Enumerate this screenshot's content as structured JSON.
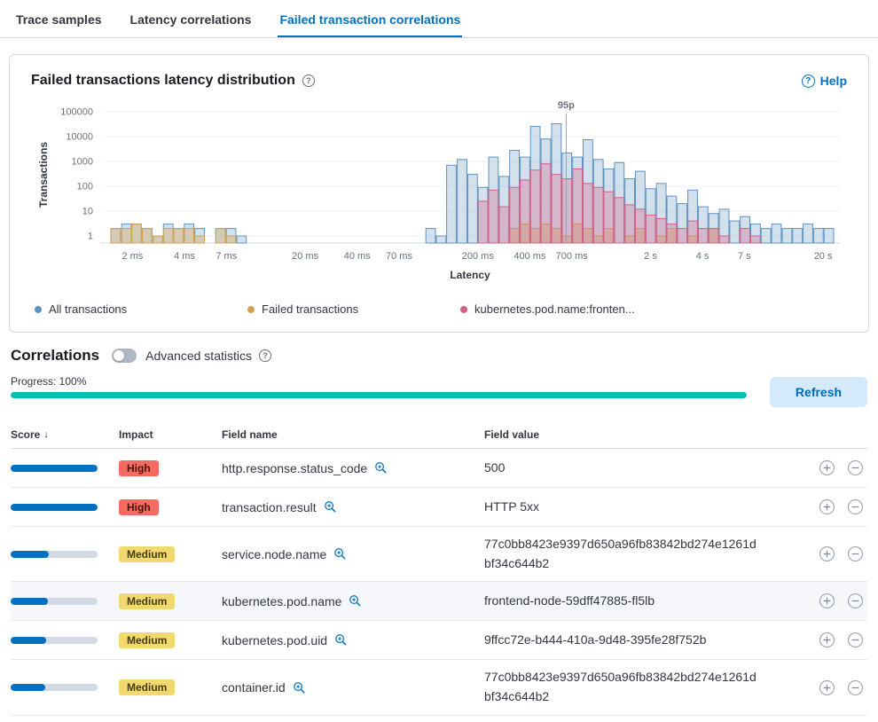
{
  "tabs": [
    {
      "label": "Trace samples",
      "active": false
    },
    {
      "label": "Latency correlations",
      "active": false
    },
    {
      "label": "Failed transaction correlations",
      "active": true
    }
  ],
  "panel": {
    "title": "Failed transactions latency distribution",
    "help_label": "Help"
  },
  "icons": {
    "question": "?",
    "help": "?",
    "sort_desc": "↓"
  },
  "chart_data": {
    "type": "bar",
    "title": "Failed transactions latency distribution",
    "xlabel": "Latency",
    "ylabel": "Transactions",
    "x_scale": "log",
    "y_scale": "log",
    "y_ticks": [
      1,
      10,
      100,
      1000,
      10000,
      100000
    ],
    "x_ticks": [
      {
        "ms": 2,
        "label": "2 ms"
      },
      {
        "ms": 4,
        "label": "4 ms"
      },
      {
        "ms": 7,
        "label": "7 ms"
      },
      {
        "ms": 20,
        "label": "20 ms"
      },
      {
        "ms": 40,
        "label": "40 ms"
      },
      {
        "ms": 70,
        "label": "70 ms"
      },
      {
        "ms": 200,
        "label": "200 ms"
      },
      {
        "ms": 400,
        "label": "400 ms"
      },
      {
        "ms": 700,
        "label": "700 ms"
      },
      {
        "ms": 2000,
        "label": "2 s"
      },
      {
        "ms": 4000,
        "label": "4 s"
      },
      {
        "ms": 7000,
        "label": "7 s"
      },
      {
        "ms": 20000,
        "label": "20 s"
      }
    ],
    "annotation": {
      "label": "95p",
      "ms": 650
    },
    "legend_position": "bottom",
    "series": [
      {
        "name": "All transactions",
        "color": "#6092C0",
        "fill_opacity": 0.28,
        "points": [
          [
            1.5,
            2
          ],
          [
            1.73,
            3
          ],
          [
            1.98,
            3
          ],
          [
            2.28,
            2
          ],
          [
            2.63,
            1
          ],
          [
            3.02,
            3
          ],
          [
            3.47,
            2
          ],
          [
            3.99,
            3
          ],
          [
            4.59,
            2
          ],
          [
            6.07,
            2
          ],
          [
            6.98,
            2
          ],
          [
            8.03,
            1
          ],
          [
            100,
            2
          ],
          [
            115,
            1
          ],
          [
            132,
            700
          ],
          [
            152,
            1200
          ],
          [
            175,
            300
          ],
          [
            201,
            90
          ],
          [
            231,
            1500
          ],
          [
            266,
            250
          ],
          [
            306,
            2800
          ],
          [
            352,
            1500
          ],
          [
            404,
            26000
          ],
          [
            465,
            8000
          ],
          [
            535,
            33000
          ],
          [
            615,
            2200
          ],
          [
            708,
            1500
          ],
          [
            814,
            7500
          ],
          [
            936,
            1200
          ],
          [
            1076,
            500
          ],
          [
            1238,
            900
          ],
          [
            1423,
            200
          ],
          [
            1637,
            400
          ],
          [
            1882,
            80
          ],
          [
            2165,
            130
          ],
          [
            2490,
            40
          ],
          [
            2863,
            20
          ],
          [
            3293,
            70
          ],
          [
            3786,
            15
          ],
          [
            4354,
            8
          ],
          [
            5008,
            12
          ],
          [
            5759,
            4
          ],
          [
            6623,
            6
          ],
          [
            7616,
            3
          ],
          [
            8759,
            2
          ],
          [
            10072,
            3
          ],
          [
            11583,
            2
          ],
          [
            13321,
            2
          ],
          [
            15319,
            3
          ],
          [
            17617,
            2
          ],
          [
            20259,
            2
          ]
        ]
      },
      {
        "name": "Failed transactions",
        "color": "#D6A24E",
        "fill_opacity": 0.35,
        "points": [
          [
            1.5,
            2
          ],
          [
            1.73,
            2
          ],
          [
            1.98,
            3
          ],
          [
            2.28,
            2
          ],
          [
            2.63,
            1
          ],
          [
            3.02,
            2
          ],
          [
            3.47,
            2
          ],
          [
            3.99,
            2
          ],
          [
            4.59,
            1
          ],
          [
            6.07,
            2
          ],
          [
            6.98,
            1
          ],
          [
            306,
            2
          ],
          [
            352,
            3
          ],
          [
            404,
            2
          ],
          [
            465,
            3
          ],
          [
            535,
            2
          ],
          [
            615,
            1
          ],
          [
            708,
            3
          ],
          [
            814,
            2
          ],
          [
            936,
            1
          ],
          [
            1076,
            2
          ],
          [
            1423,
            1
          ],
          [
            1637,
            2
          ],
          [
            2165,
            1
          ],
          [
            2490,
            2
          ],
          [
            3293,
            1
          ],
          [
            4354,
            2
          ]
        ]
      },
      {
        "name": "kubernetes.pod.name:fronten...",
        "color": "#D36086",
        "fill_opacity": 0.32,
        "points": [
          [
            201,
            25
          ],
          [
            231,
            70
          ],
          [
            266,
            15
          ],
          [
            306,
            90
          ],
          [
            352,
            180
          ],
          [
            404,
            450
          ],
          [
            465,
            800
          ],
          [
            535,
            300
          ],
          [
            615,
            200
          ],
          [
            708,
            500
          ],
          [
            814,
            130
          ],
          [
            936,
            90
          ],
          [
            1076,
            60
          ],
          [
            1238,
            35
          ],
          [
            1423,
            18
          ],
          [
            1637,
            12
          ],
          [
            1882,
            7
          ],
          [
            2165,
            5
          ],
          [
            2490,
            3
          ],
          [
            2863,
            2
          ],
          [
            3293,
            4
          ],
          [
            3786,
            2
          ],
          [
            4354,
            2
          ],
          [
            5008,
            1
          ],
          [
            6623,
            2
          ],
          [
            7616,
            1
          ]
        ]
      }
    ]
  },
  "legend": [
    {
      "label": "All transactions",
      "color": "#6092C0"
    },
    {
      "label": "Failed transactions",
      "color": "#D6A24E"
    },
    {
      "label": "kubernetes.pod.name:fronten...",
      "color": "#D36086"
    }
  ],
  "correlations": {
    "heading": "Correlations",
    "toggle_label": "Advanced statistics",
    "toggle_on": false,
    "progress_label": "Progress: 100%",
    "progress_value": 100,
    "refresh_label": "Refresh",
    "table": {
      "headers": [
        "Score",
        "Impact",
        "Field name",
        "Field value"
      ],
      "rows": [
        {
          "score": 1.0,
          "impact": "High",
          "field_name": "http.response.status_code",
          "field_value": "500",
          "highlighted": false
        },
        {
          "score": 1.0,
          "impact": "High",
          "field_name": "transaction.result",
          "field_value": "HTTP 5xx",
          "highlighted": false
        },
        {
          "score": 0.44,
          "impact": "Medium",
          "field_name": "service.node.name",
          "field_value": "77c0bb8423e9397d650a96fb83842bd274e1261dbf34c644b2",
          "highlighted": false
        },
        {
          "score": 0.43,
          "impact": "Medium",
          "field_name": "kubernetes.pod.name",
          "field_value": "frontend-node-59dff47885-fl5lb",
          "highlighted": true
        },
        {
          "score": 0.41,
          "impact": "Medium",
          "field_name": "kubernetes.pod.uid",
          "field_value": "9ffcc72e-b444-410a-9d48-395fe28f752b",
          "highlighted": false
        },
        {
          "score": 0.4,
          "impact": "Medium",
          "field_name": "container.id",
          "field_value": "77c0bb8423e9397d650a96fb83842bd274e1261dbf34c644b2",
          "highlighted": false
        }
      ]
    }
  }
}
